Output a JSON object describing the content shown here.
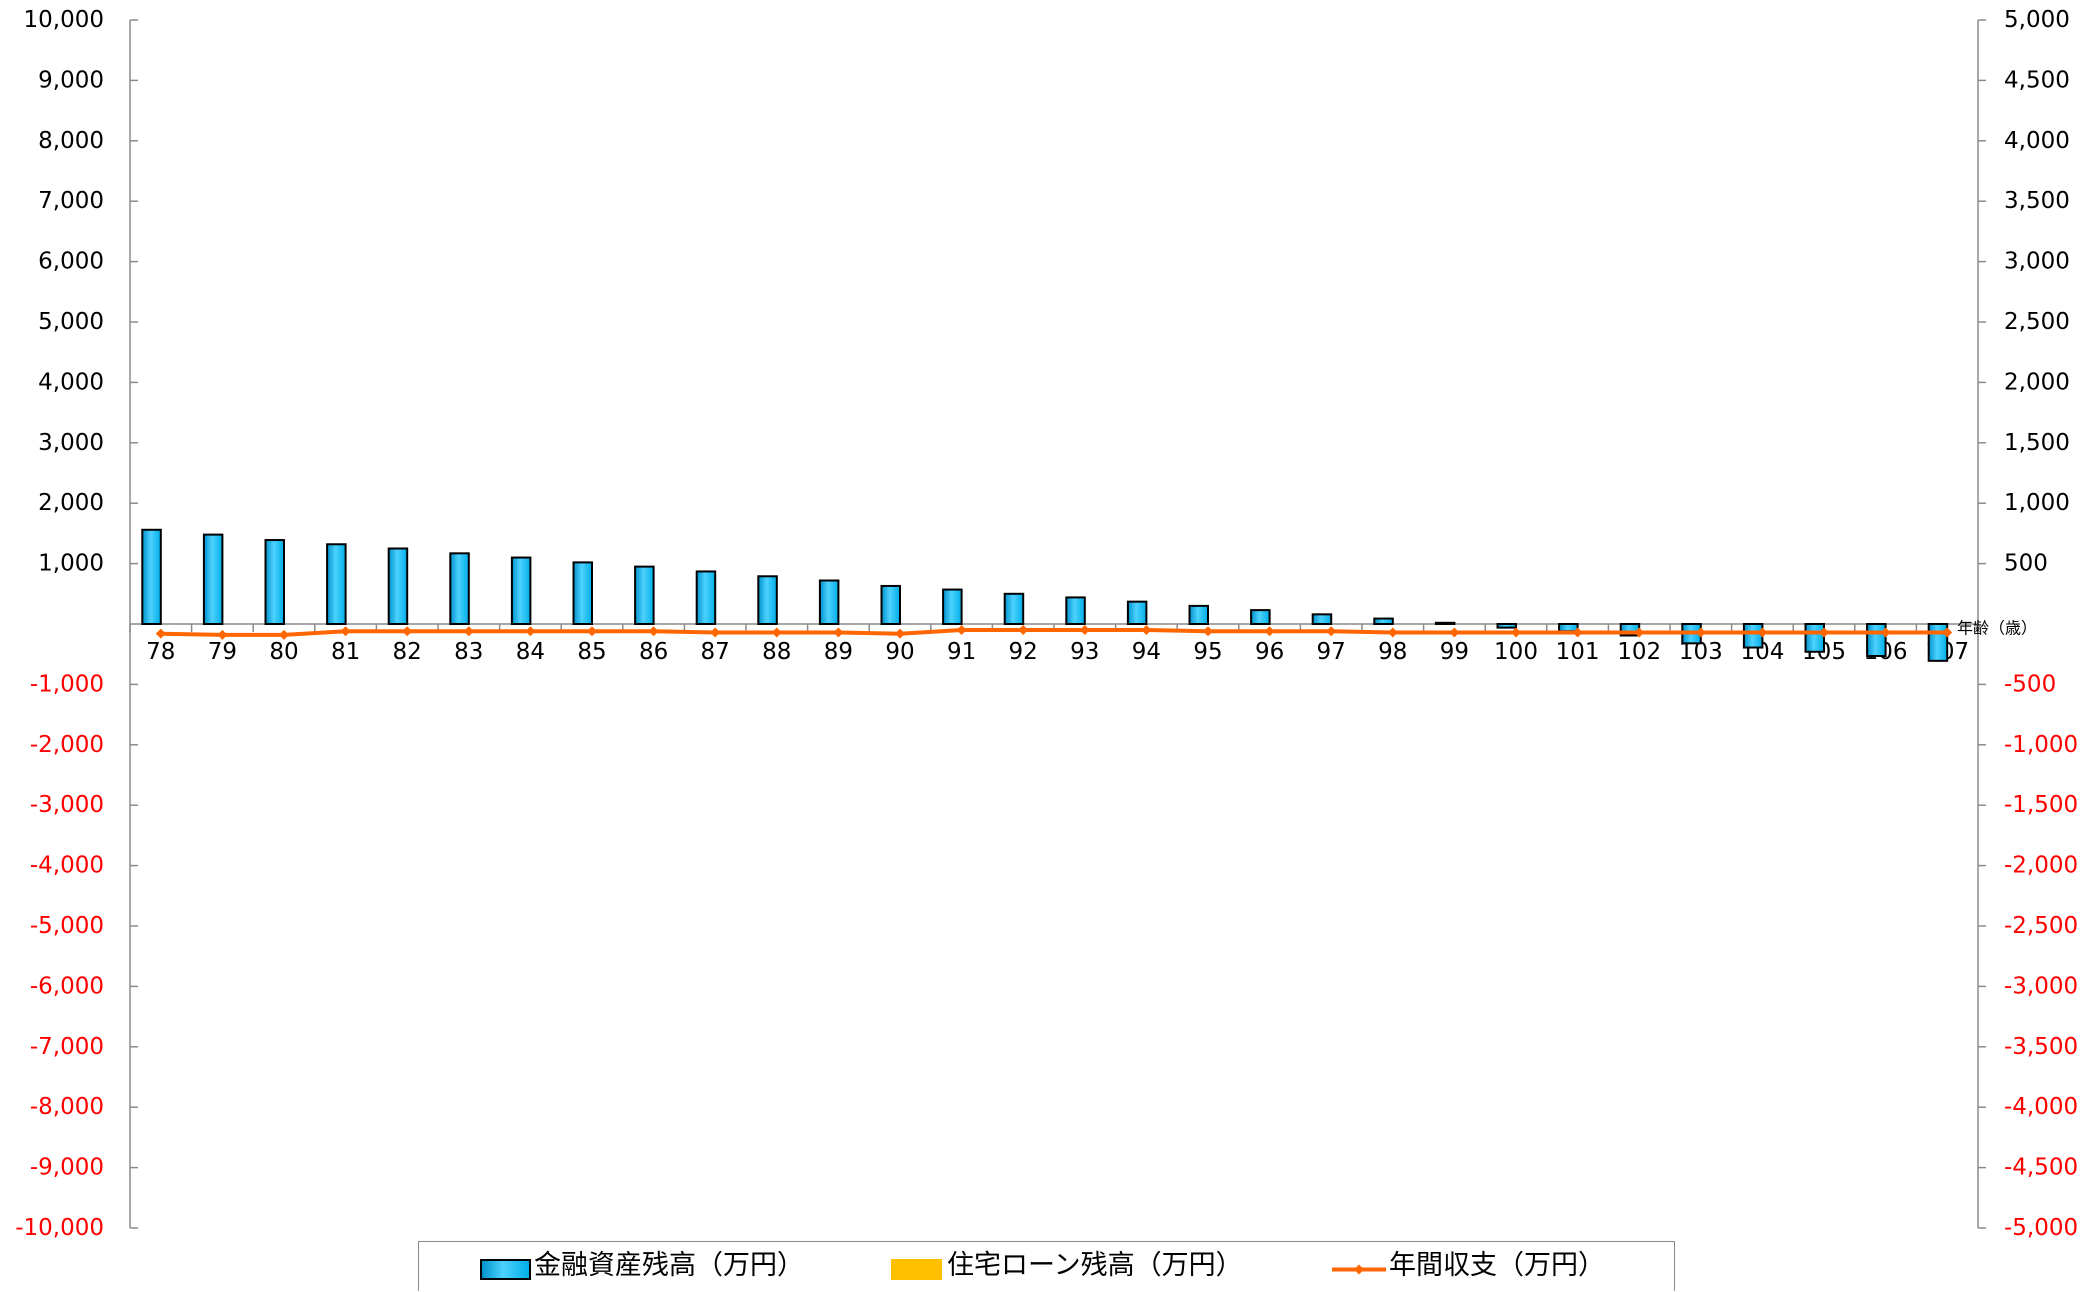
{
  "chart_data": {
    "type": "bar",
    "categories": [
      "78",
      "79",
      "80",
      "81",
      "82",
      "83",
      "84",
      "85",
      "86",
      "87",
      "88",
      "89",
      "90",
      "91",
      "92",
      "93",
      "94",
      "95",
      "96",
      "97",
      "98",
      "99",
      "100",
      "101",
      "102",
      "103",
      "104",
      "105",
      "106",
      "107"
    ],
    "xlabel": "年齢（歳）",
    "y_left": {
      "min": -10000,
      "max": 10000,
      "ticks": [
        10000,
        9000,
        8000,
        7000,
        6000,
        5000,
        4000,
        3000,
        2000,
        1000,
        -1000,
        -2000,
        -3000,
        -4000,
        -5000,
        -6000,
        -7000,
        -8000,
        -9000,
        -10000
      ],
      "tick_labels": [
        "10,000",
        "9,000",
        "8,000",
        "7,000",
        "6,000",
        "5,000",
        "4,000",
        "3,000",
        "2,000",
        "1,000",
        "-1,000",
        "-2,000",
        "-3,000",
        "-4,000",
        "-5,000",
        "-6,000",
        "-7,000",
        "-8,000",
        "-9,000",
        "-10,000"
      ]
    },
    "y_right": {
      "min": -5000,
      "max": 5000,
      "ticks": [
        5000,
        4500,
        4000,
        3500,
        3000,
        2500,
        2000,
        1500,
        1000,
        500,
        -500,
        -1000,
        -1500,
        -2000,
        -2500,
        -3000,
        -3500,
        -4000,
        -4500,
        -5000
      ],
      "tick_labels": [
        "5,000",
        "4,500",
        "4,000",
        "3,500",
        "3,000",
        "2,500",
        "2,000",
        "1,500",
        "1,000",
        "500",
        "-500",
        "-1,000",
        "-1,500",
        "-2,000",
        "-2,500",
        "-3,000",
        "-3,500",
        "-4,000",
        "-4,500",
        "-5,000"
      ]
    },
    "series": [
      {
        "name": "金融資産残高（万円）",
        "type": "bar",
        "axis": "left",
        "color": "#00B0F0",
        "border_color": "#000000",
        "values": [
          1560,
          1480,
          1390,
          1320,
          1250,
          1170,
          1100,
          1020,
          950,
          870,
          790,
          720,
          630,
          570,
          500,
          440,
          370,
          300,
          230,
          160,
          90,
          20,
          -60,
          -120,
          -190,
          -320,
          -390,
          -460,
          -530,
          -610
        ]
      },
      {
        "name": "住宅ローン残高（万円）",
        "type": "bar",
        "axis": "left",
        "color": "#FFC000",
        "values": [
          0,
          0,
          0,
          0,
          0,
          0,
          0,
          0,
          0,
          0,
          0,
          0,
          0,
          0,
          0,
          0,
          0,
          0,
          0,
          0,
          0,
          0,
          0,
          0,
          0,
          0,
          0,
          0,
          0,
          0
        ]
      },
      {
        "name": "年間収支（万円）",
        "type": "line",
        "axis": "right",
        "color": "#FF6600",
        "marker": "diamond",
        "values": [
          -80,
          -90,
          -90,
          -60,
          -60,
          -60,
          -60,
          -60,
          -60,
          -70,
          -70,
          -70,
          -80,
          -50,
          -50,
          -50,
          -50,
          -60,
          -60,
          -60,
          -70,
          -70,
          -70,
          -70,
          -70,
          -70,
          -70,
          -70,
          -70,
          -70
        ]
      }
    ],
    "positive_label_color": "#000000",
    "negative_label_color": "#FF0000",
    "axis_color": "#8A8A8A",
    "grid": false,
    "legend": "bottom"
  }
}
